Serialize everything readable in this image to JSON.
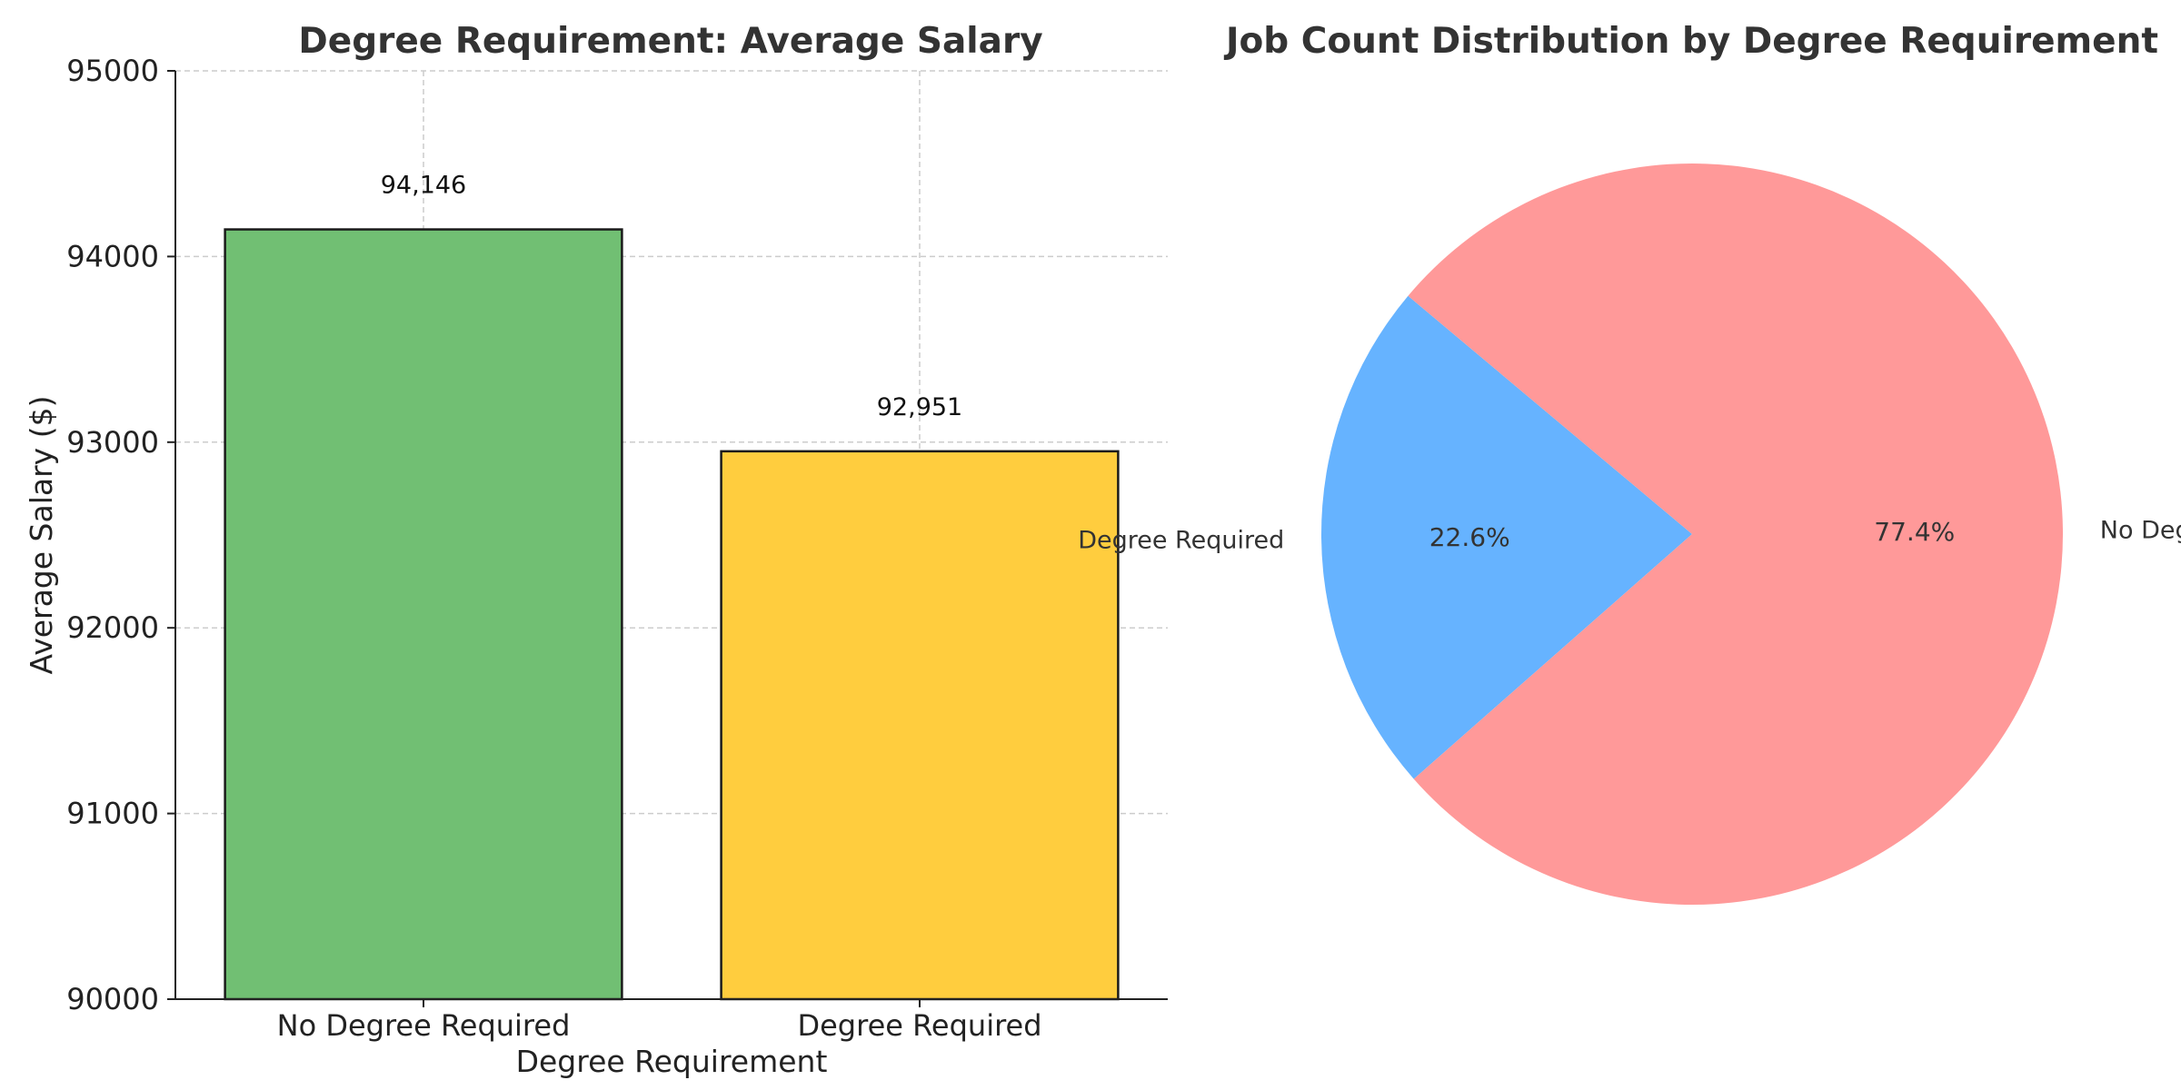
{
  "chart_data": [
    {
      "type": "bar",
      "title": "Degree Requirement: Average Salary",
      "xlabel": "Degree Requirement",
      "ylabel": "Average Salary ($)",
      "categories": [
        "No Degree Required",
        "Degree Required"
      ],
      "values": [
        94146,
        92951
      ],
      "value_labels": [
        "94,146",
        "92,951"
      ],
      "colors": [
        "#71bf73",
        "#ffcd3e"
      ],
      "edge_color": "#1a1a1a",
      "ylim": [
        90000,
        95000
      ],
      "yticks": [
        "90000",
        "91000",
        "92000",
        "93000",
        "94000",
        "95000"
      ],
      "grid": true
    },
    {
      "type": "pie",
      "title": "Job Count Distribution by Degree Requirement",
      "labels": [
        "Degree Required",
        "No Degree Required"
      ],
      "values": [
        22.6,
        77.4
      ],
      "percent_labels": [
        "22.6%",
        "77.4%"
      ],
      "colors": [
        "#66b3ff",
        "#ff9999"
      ],
      "start_angle_deg": 140
    }
  ]
}
